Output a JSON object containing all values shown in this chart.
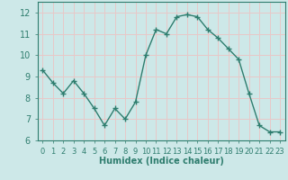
{
  "x": [
    0,
    1,
    2,
    3,
    4,
    5,
    6,
    7,
    8,
    9,
    10,
    11,
    12,
    13,
    14,
    15,
    16,
    17,
    18,
    19,
    20,
    21,
    22,
    23
  ],
  "y": [
    9.3,
    8.7,
    8.2,
    8.8,
    8.2,
    7.5,
    6.7,
    7.5,
    7.0,
    7.8,
    10.0,
    11.2,
    11.0,
    11.8,
    11.9,
    11.8,
    11.2,
    10.8,
    10.3,
    9.8,
    8.2,
    6.7,
    6.4,
    6.4
  ],
  "line_color": "#2e7d6e",
  "marker": "+",
  "bg_color": "#cde8e8",
  "grid_color": "#e8c8c8",
  "tick_color": "#2e7d6e",
  "xlabel": "Humidex (Indice chaleur)",
  "xlim": [
    -0.5,
    23.5
  ],
  "ylim": [
    6.0,
    12.5
  ],
  "yticks": [
    6,
    7,
    8,
    9,
    10,
    11,
    12
  ],
  "xticks": [
    0,
    1,
    2,
    3,
    4,
    5,
    6,
    7,
    8,
    9,
    10,
    11,
    12,
    13,
    14,
    15,
    16,
    17,
    18,
    19,
    20,
    21,
    22,
    23
  ],
  "xlabel_fontsize": 7,
  "tick_fontsize": 6
}
